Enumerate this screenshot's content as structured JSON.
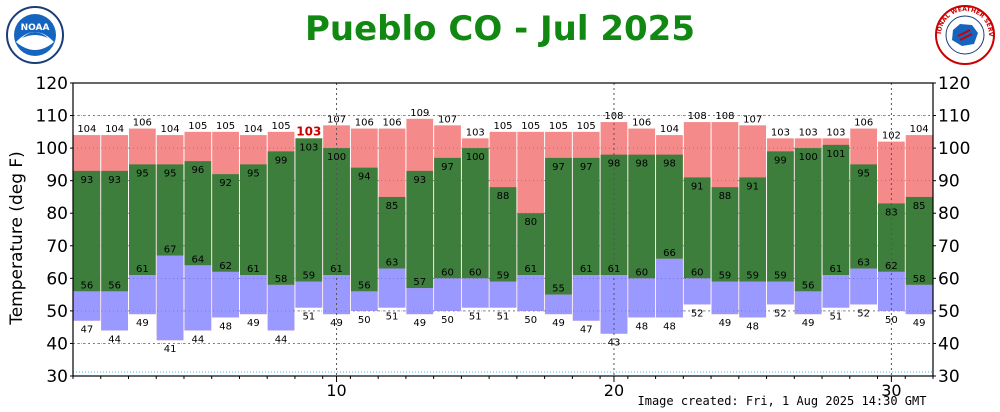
{
  "title": "Pueblo CO - Jul 2025",
  "credit": "Image created: Fri, 1 Aug 2025 14:30 GMT",
  "logos": {
    "left": {
      "name": "noaa-logo",
      "text": "NOAA"
    },
    "right": {
      "name": "nws-logo",
      "text": "NATIONAL WEATHER SERVICE"
    }
  },
  "colors": {
    "record_high": "#f58a8a",
    "record_high_dark": "#7a3a3a",
    "normal": "#3d7e3d",
    "normal_light": "#7fef7f",
    "record_low": "#9999ff",
    "record_low_dark": "#444488",
    "title": "#118811"
  },
  "chart_data": {
    "type": "bar",
    "title": "Pueblo CO - Jul 2025",
    "ylabel": "Temperature (deg F)",
    "xlabel": "",
    "ylim": [
      30,
      120
    ],
    "yticks": [
      30,
      40,
      50,
      60,
      70,
      80,
      90,
      100,
      110,
      120
    ],
    "xticks": [
      10,
      20,
      30
    ],
    "grid": true,
    "days": [
      1,
      2,
      3,
      4,
      5,
      6,
      7,
      8,
      9,
      10,
      11,
      12,
      13,
      14,
      15,
      16,
      17,
      18,
      19,
      20,
      21,
      22,
      23,
      24,
      25,
      26,
      27,
      28,
      29,
      30,
      31
    ],
    "series": [
      {
        "name": "record_high",
        "values": [
          104,
          104,
          106,
          104,
          105,
          105,
          104,
          105,
          103,
          107,
          106,
          106,
          109,
          107,
          103,
          105,
          105,
          105,
          105,
          108,
          106,
          104,
          108,
          108,
          107,
          103,
          103,
          103,
          106,
          102,
          104
        ]
      },
      {
        "name": "normal_high",
        "values": [
          93,
          93,
          95,
          95,
          96,
          92,
          95,
          99,
          103,
          100,
          94,
          85,
          93,
          97,
          100,
          88,
          80,
          97,
          97,
          98,
          98,
          98,
          91,
          88,
          91,
          99,
          100,
          101,
          95,
          83,
          85
        ]
      },
      {
        "name": "normal_low",
        "values": [
          56,
          56,
          61,
          67,
          64,
          62,
          61,
          58,
          59,
          61,
          56,
          63,
          57,
          60,
          60,
          59,
          61,
          55,
          61,
          61,
          60,
          66,
          60,
          59,
          59,
          59,
          56,
          61,
          63,
          62,
          58
        ]
      },
      {
        "name": "record_low",
        "values": [
          47,
          44,
          49,
          41,
          44,
          48,
          49,
          44,
          51,
          49,
          50,
          51,
          49,
          50,
          51,
          51,
          50,
          49,
          47,
          43,
          48,
          48,
          52,
          49,
          48,
          52,
          49,
          51,
          52,
          50,
          49
        ]
      }
    ],
    "record_marker": {
      "day": 9,
      "value": 103
    }
  }
}
